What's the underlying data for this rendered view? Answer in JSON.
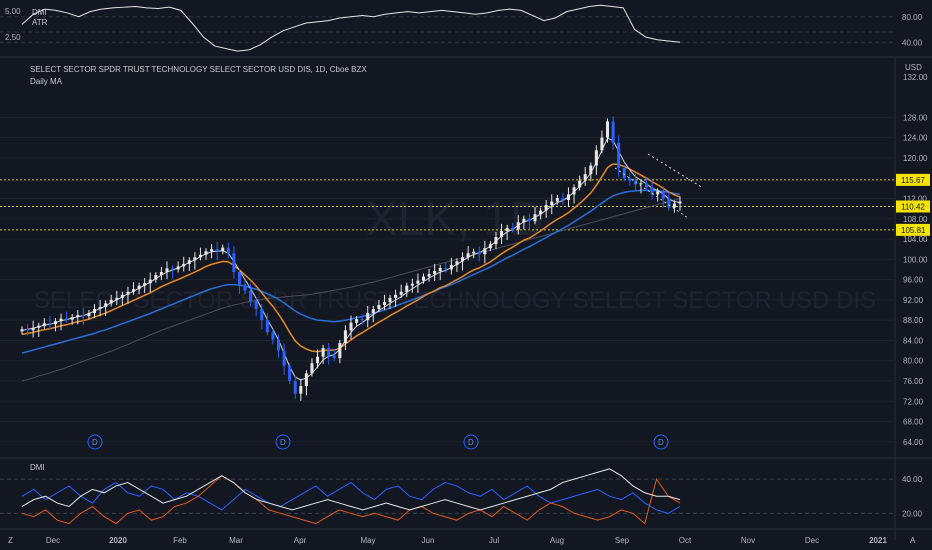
{
  "window": {
    "atr_label": "ATR",
    "dmi_top_label": "DMI",
    "dmi_label": "DMI",
    "ma_label": "Daily MA",
    "title": "SELECT SECTOR SPDR TRUST TECHNOLOGY SELECT SECTOR USD DIS, 1D, Cboe BZX",
    "watermark_symbol": "XLK, 1D",
    "watermark_name": "SELECT SECTOR SPDR TRUST TECHNOLOGY SELECT SECTOR USD DIS",
    "currency": "USD",
    "left_scale": [
      "5.00",
      "2.50"
    ],
    "bottom_left": "Z",
    "bottom_right": "A"
  },
  "colors": {
    "background": "#131722",
    "grid": "#1e222d",
    "up": "#e6e6e6",
    "down": "#2962ff",
    "ma_fast": "#d1d4dc",
    "ma_mid": "#e58a2c",
    "ma_slow": "#2b6fd6",
    "ma_long": "#4a4e5a",
    "level": "#d6d04b",
    "level_label_bg": "#f5e400",
    "dmi_plus": "#2962ff",
    "dmi_minus": "#e05a1e",
    "adx": "#e6e6e6"
  },
  "chart_data": [
    {
      "type": "line",
      "name": "top-oscillator-pane",
      "legend": [
        "DMI",
        "ATR"
      ],
      "y_ticks": [
        "80.00",
        "40.00"
      ],
      "ylim": [
        20,
        100
      ],
      "series": [
        {
          "values": [
            68,
            84,
            92,
            90,
            86,
            80,
            88,
            92,
            94,
            95,
            96,
            94,
            93,
            95,
            90,
            70,
            48,
            34,
            30,
            26,
            28,
            36,
            48,
            58,
            64,
            70,
            72,
            74,
            78,
            80,
            82,
            80,
            84,
            86,
            88,
            86,
            88,
            90,
            88,
            86,
            84,
            86,
            90,
            92,
            90,
            82,
            74,
            78,
            88,
            92,
            96,
            98,
            96,
            94,
            60,
            48,
            44,
            42,
            40
          ]
        }
      ]
    },
    {
      "type": "candlestick",
      "name": "price-pane",
      "ylabel": "USD",
      "ylim": [
        62,
        133
      ],
      "y_ticks": [
        "64.00",
        "68.00",
        "72.00",
        "76.00",
        "80.00",
        "84.00",
        "88.00",
        "92.00",
        "96.00",
        "100.00",
        "104.00",
        "108.00",
        "112.00",
        "116.00",
        "120.00",
        "124.00",
        "128.00"
      ],
      "x_ticks": [
        "Dec",
        "2020",
        "Feb",
        "Mar",
        "Apr",
        "May",
        "Jun",
        "Jul",
        "Aug",
        "Sep",
        "Oct",
        "Nov",
        "Dec",
        "2021"
      ],
      "levels": [
        115.67,
        110.42,
        105.81
      ],
      "level_labels": [
        "115.67",
        "110.42",
        "105.81"
      ],
      "top_label": "132.00",
      "event_markers": [
        "D",
        "D",
        "D",
        "D"
      ],
      "closes": [
        86.2,
        86.0,
        86.5,
        86.9,
        87.4,
        87.2,
        87.8,
        88.3,
        88.1,
        88.6,
        89.0,
        88.8,
        89.4,
        90.2,
        90.6,
        91.3,
        92.0,
        92.4,
        93.0,
        93.6,
        94.1,
        94.8,
        95.3,
        96.0,
        96.9,
        97.5,
        98.2,
        98.0,
        98.6,
        99.1,
        99.8,
        100.4,
        100.9,
        101.6,
        102.0,
        101.6,
        102.3,
        101.2,
        97.5,
        95.0,
        93.8,
        91.8,
        90.2,
        88.0,
        85.6,
        84.2,
        82.0,
        79.0,
        76.0,
        73.5,
        75.0,
        77.5,
        79.5,
        80.8,
        82.5,
        81.0,
        80.5,
        83.5,
        86.0,
        87.5,
        88.2,
        88.0,
        89.4,
        90.2,
        91.0,
        91.6,
        92.4,
        93.0,
        93.6,
        94.8,
        95.2,
        95.8,
        96.6,
        97.1,
        97.7,
        98.3,
        98.0,
        98.9,
        99.6,
        100.4,
        101.2,
        101.5,
        101.0,
        102.2,
        103.0,
        104.4,
        105.6,
        106.2,
        105.9,
        107.3,
        108.0,
        107.5,
        108.9,
        109.6,
        110.7,
        111.4,
        112.1,
        111.7,
        112.8,
        114.2,
        115.5,
        116.8,
        118.5,
        121.5,
        124.0,
        127.2,
        123.0,
        118.0,
        116.0,
        115.5,
        114.8,
        115.0,
        114.2,
        112.8,
        113.4,
        112.0,
        110.2,
        111.0,
        111.4
      ],
      "ma_fast": [
        86.0,
        86.2,
        86.4,
        86.7,
        87.0,
        87.2,
        87.5,
        87.9,
        88.1,
        88.4,
        88.7,
        88.9,
        89.3,
        89.8,
        90.3,
        90.8,
        91.5,
        92.0,
        92.6,
        93.2,
        93.7,
        94.3,
        94.9,
        95.5,
        96.2,
        96.9,
        97.5,
        97.9,
        98.3,
        98.8,
        99.4,
        99.9,
        100.5,
        101.1,
        101.5,
        101.6,
        101.7,
        101.2,
        99.6,
        97.8,
        96.0,
        94.2,
        92.3,
        90.3,
        88.1,
        86.2,
        84.1,
        81.5,
        78.8,
        76.8,
        76.2,
        76.6,
        77.5,
        78.8,
        80.2,
        80.9,
        81.2,
        82.3,
        84.0,
        85.6,
        86.8,
        87.5,
        88.3,
        89.1,
        89.9,
        90.6,
        91.3,
        92.0,
        92.6,
        93.5,
        94.2,
        94.9,
        95.6,
        96.3,
        96.9,
        97.5,
        97.8,
        98.4,
        99.0,
        99.7,
        100.4,
        101.0,
        101.3,
        101.9,
        102.6,
        103.6,
        104.6,
        105.4,
        105.9,
        106.7,
        107.4,
        107.7,
        108.3,
        108.9,
        109.7,
        110.5,
        111.2,
        111.6,
        112.3,
        113.3,
        114.4,
        115.6,
        117.0,
        119.2,
        121.5,
        123.9,
        123.4,
        121.3,
        119.2,
        117.6,
        116.3,
        115.6,
        114.9,
        114.0,
        113.6,
        112.9,
        111.9,
        111.4,
        111.2
      ],
      "ma_mid": [
        85.2,
        85.4,
        85.6,
        85.9,
        86.1,
        86.3,
        86.6,
        86.9,
        87.1,
        87.4,
        87.7,
        87.9,
        88.2,
        88.6,
        89.0,
        89.4,
        89.9,
        90.4,
        90.9,
        91.4,
        91.9,
        92.4,
        92.9,
        93.4,
        94.0,
        94.6,
        95.1,
        95.6,
        96.0,
        96.5,
        97.0,
        97.5,
        98.0,
        98.6,
        99.0,
        99.3,
        99.6,
        99.5,
        98.8,
        97.9,
        96.9,
        95.9,
        94.7,
        93.4,
        92.0,
        90.7,
        89.2,
        87.5,
        85.6,
        83.9,
        82.9,
        82.3,
        81.9,
        81.8,
        82.0,
        82.1,
        82.1,
        82.5,
        83.3,
        84.1,
        84.9,
        85.5,
        86.2,
        86.9,
        87.6,
        88.2,
        88.9,
        89.5,
        90.1,
        90.8,
        91.4,
        92.0,
        92.7,
        93.3,
        93.8,
        94.4,
        94.8,
        95.4,
        96.0,
        96.6,
        97.3,
        97.9,
        98.3,
        98.9,
        99.5,
        100.3,
        101.1,
        101.8,
        102.4,
        103.1,
        103.8,
        104.2,
        104.9,
        105.6,
        106.4,
        107.2,
        107.9,
        108.5,
        109.2,
        110.1,
        111.0,
        112.0,
        113.1,
        114.6,
        116.3,
        118.1,
        118.8,
        118.7,
        118.3,
        117.8,
        117.2,
        116.6,
        116.0,
        115.3,
        114.7,
        114.0,
        113.3,
        112.7,
        112.3
      ],
      "ma_slow": [
        81.5,
        81.8,
        82.1,
        82.4,
        82.7,
        83.0,
        83.3,
        83.6,
        83.9,
        84.2,
        84.5,
        84.8,
        85.1,
        85.4,
        85.8,
        86.1,
        86.5,
        86.9,
        87.3,
        87.7,
        88.1,
        88.5,
        88.9,
        89.3,
        89.8,
        90.2,
        90.7,
        91.1,
        91.6,
        92.0,
        92.5,
        92.9,
        93.4,
        93.8,
        94.2,
        94.5,
        94.8,
        95.0,
        95.0,
        94.9,
        94.7,
        94.4,
        94.1,
        93.7,
        93.2,
        92.7,
        92.1,
        91.4,
        90.6,
        89.8,
        89.2,
        88.7,
        88.3,
        88.0,
        87.9,
        87.8,
        87.7,
        87.8,
        88.0,
        88.2,
        88.5,
        88.7,
        89.0,
        89.3,
        89.7,
        90.0,
        90.4,
        90.8,
        91.2,
        91.6,
        92.0,
        92.4,
        92.9,
        93.3,
        93.7,
        94.2,
        94.6,
        95.0,
        95.5,
        96.0,
        96.5,
        97.0,
        97.5,
        98.0,
        98.5,
        99.1,
        99.7,
        100.3,
        100.8,
        101.4,
        102.0,
        102.5,
        103.1,
        103.7,
        104.3,
        104.9,
        105.5,
        106.1,
        106.7,
        107.4,
        108.1,
        108.8,
        109.5,
        110.3,
        111.1,
        111.9,
        112.5,
        112.9,
        113.2,
        113.4,
        113.5,
        113.6,
        113.6,
        113.6,
        113.5,
        113.4,
        113.2,
        113.0,
        112.8
      ],
      "ma_long": [
        76.0,
        76.3,
        76.6,
        77.0,
        77.3,
        77.6,
        78.0,
        78.3,
        78.7,
        79.1,
        79.5,
        79.9,
        80.3,
        80.7,
        81.1,
        81.5,
        81.9,
        82.3,
        82.8,
        83.2,
        83.7,
        84.2,
        84.6,
        85.1,
        85.5,
        86.0,
        86.4,
        86.8,
        87.2,
        87.6,
        88.0,
        88.4,
        88.8,
        89.2,
        89.6,
        90.0,
        90.4,
        90.7,
        91.0,
        91.2,
        91.5,
        91.7,
        91.9,
        92.1,
        92.3,
        92.4,
        92.5,
        92.6,
        92.7,
        92.8,
        92.9,
        93.0,
        93.1,
        93.3,
        93.5,
        93.7,
        93.9,
        94.1,
        94.3,
        94.5,
        94.8,
        95.0,
        95.3,
        95.5,
        95.8,
        96.1,
        96.4,
        96.7,
        97.0,
        97.3,
        97.6,
        97.9,
        98.2,
        98.5,
        98.8,
        99.1,
        99.4,
        99.7,
        100.0,
        100.3,
        100.6,
        100.9,
        101.2,
        101.5,
        101.8,
        102.1,
        102.4,
        102.7,
        103.0,
        103.3,
        103.6,
        103.9,
        104.2,
        104.5,
        104.8,
        105.1,
        105.4,
        105.7,
        106.0,
        106.3,
        106.6,
        106.9,
        107.2,
        107.5,
        107.8,
        108.1,
        108.4,
        108.7,
        109.0,
        109.3,
        109.6,
        109.9,
        110.2,
        110.5,
        110.8,
        111.1,
        111.4,
        111.7,
        112.0
      ]
    },
    {
      "type": "line",
      "name": "dmi-pane",
      "legend": [
        "DMI"
      ],
      "y_ticks": [
        "40.00",
        "20.00"
      ],
      "ylim": [
        12,
        50
      ],
      "series": [
        {
          "name": "+DI",
          "values": [
            30,
            34,
            28,
            32,
            36,
            30,
            26,
            34,
            38,
            32,
            30,
            36,
            34,
            28,
            32,
            30,
            26,
            22,
            28,
            34,
            30,
            26,
            24,
            28,
            32,
            36,
            30,
            34,
            38,
            32,
            28,
            34,
            36,
            30,
            28,
            34,
            38,
            36,
            32,
            30,
            34,
            28,
            32,
            36,
            30,
            26,
            28,
            30,
            32,
            34,
            30,
            28,
            32,
            26,
            22,
            20,
            24
          ]
        },
        {
          "name": "-DI",
          "values": [
            20,
            18,
            22,
            16,
            14,
            20,
            24,
            18,
            14,
            20,
            22,
            16,
            18,
            24,
            26,
            30,
            36,
            42,
            38,
            32,
            28,
            22,
            20,
            18,
            16,
            14,
            18,
            22,
            20,
            18,
            20,
            18,
            16,
            22,
            24,
            20,
            18,
            16,
            20,
            22,
            18,
            24,
            20,
            16,
            22,
            26,
            24,
            20,
            18,
            16,
            18,
            22,
            20,
            14,
            40,
            30,
            26
          ]
        },
        {
          "name": "ADX",
          "values": [
            24,
            28,
            30,
            26,
            24,
            30,
            34,
            32,
            36,
            38,
            34,
            30,
            26,
            28,
            30,
            34,
            38,
            42,
            38,
            32,
            28,
            26,
            24,
            22,
            24,
            26,
            28,
            26,
            24,
            22,
            24,
            26,
            24,
            22,
            24,
            26,
            28,
            26,
            24,
            22,
            24,
            26,
            28,
            30,
            32,
            34,
            38,
            40,
            42,
            44,
            46,
            42,
            36,
            32,
            30,
            30,
            28
          ]
        }
      ]
    }
  ]
}
